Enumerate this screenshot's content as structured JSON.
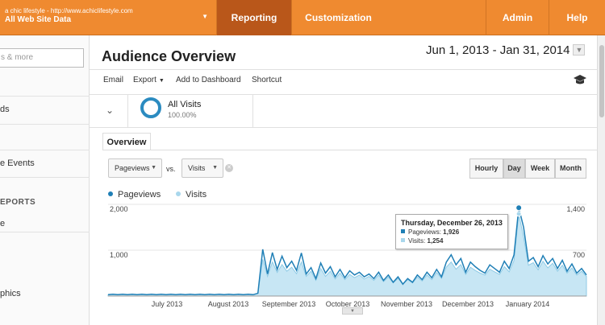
{
  "topbar": {
    "account_url": "a chic lifestyle - http://www.achiclifestyle.com",
    "account_view": "All Web Site Data",
    "nav": [
      "Reporting",
      "Customization",
      "Admin",
      "Help"
    ],
    "color": "#ef8a30",
    "active_color": "#b9571a"
  },
  "sidebar": {
    "search_placeholder": "s & more",
    "items": [
      "ds",
      "e Events",
      "e",
      "phics"
    ],
    "section_header": "EPORTS"
  },
  "page": {
    "title": "Audience Overview",
    "date_range": "Jun 1, 2013 - Jan 31, 2014"
  },
  "toolbar": {
    "email": "Email",
    "export": "Export",
    "add_to_dashboard": "Add to Dashboard",
    "shortcut": "Shortcut"
  },
  "segment": {
    "name": "All Visits",
    "percent": "100.00%"
  },
  "tab": "Overview",
  "controls": {
    "metric1": "Pageviews",
    "vs": "vs.",
    "metric2": "Visits",
    "granularity": [
      "Hourly",
      "Day",
      "Week",
      "Month"
    ],
    "active_granularity": "Day"
  },
  "legend": {
    "series1": "Pageviews",
    "series2": "Visits",
    "color1": "#1f7fb6",
    "color2": "#a9d7ec"
  },
  "tooltip": {
    "date": "Thursday, December 26, 2013",
    "pageviews_label": "Pageviews:",
    "pageviews_value": "1,926",
    "visits_label": "Visits:",
    "visits_value": "1,254"
  },
  "chart_data": {
    "type": "line",
    "xlabels": [
      "July 2013",
      "August 2013",
      "September 2013",
      "October 2013",
      "November 2013",
      "December 2013",
      "January 2014"
    ],
    "left_axis": {
      "ticks": [
        "2,000",
        "1,000"
      ],
      "ylim": [
        0,
        2000
      ]
    },
    "right_axis": {
      "ticks": [
        "1,400",
        "700"
      ],
      "ylim": [
        0,
        1400
      ]
    },
    "series": [
      {
        "name": "Pageviews",
        "values": [
          30,
          40,
          30,
          40,
          30,
          40,
          30,
          40,
          30,
          40,
          30,
          40,
          30,
          40,
          30,
          40,
          30,
          40,
          30,
          40,
          30,
          40,
          30,
          40,
          30,
          40,
          30,
          40,
          30,
          40,
          30,
          60,
          1020,
          480,
          950,
          580,
          870,
          620,
          760,
          560,
          940,
          480,
          620,
          380,
          720,
          500,
          640,
          420,
          580,
          400,
          550,
          460,
          520,
          420,
          480,
          380,
          520,
          340,
          460,
          300,
          420,
          260,
          380,
          300,
          460,
          360,
          520,
          400,
          580,
          420,
          740,
          900,
          680,
          820,
          520,
          740,
          640,
          560,
          500,
          680,
          600,
          520,
          760,
          600,
          900,
          1926,
          1500,
          760,
          840,
          640,
          880,
          700,
          820,
          600,
          780,
          540,
          700,
          500,
          600,
          460
        ]
      },
      {
        "name": "Visits",
        "values": [
          20,
          26,
          20,
          26,
          20,
          26,
          20,
          26,
          20,
          26,
          20,
          26,
          20,
          26,
          20,
          26,
          20,
          26,
          20,
          26,
          20,
          26,
          20,
          26,
          20,
          26,
          20,
          26,
          20,
          26,
          20,
          40,
          560,
          300,
          520,
          360,
          480,
          380,
          440,
          340,
          520,
          300,
          380,
          240,
          420,
          300,
          380,
          260,
          350,
          250,
          330,
          280,
          320,
          260,
          300,
          240,
          320,
          220,
          290,
          200,
          270,
          180,
          250,
          200,
          290,
          230,
          320,
          250,
          360,
          270,
          440,
          520,
          410,
          480,
          330,
          440,
          390,
          350,
          320,
          410,
          370,
          330,
          450,
          370,
          540,
          1254,
          900,
          470,
          510,
          400,
          530,
          430,
          500,
          380,
          470,
          350,
          430,
          320,
          380,
          300
        ]
      }
    ]
  }
}
